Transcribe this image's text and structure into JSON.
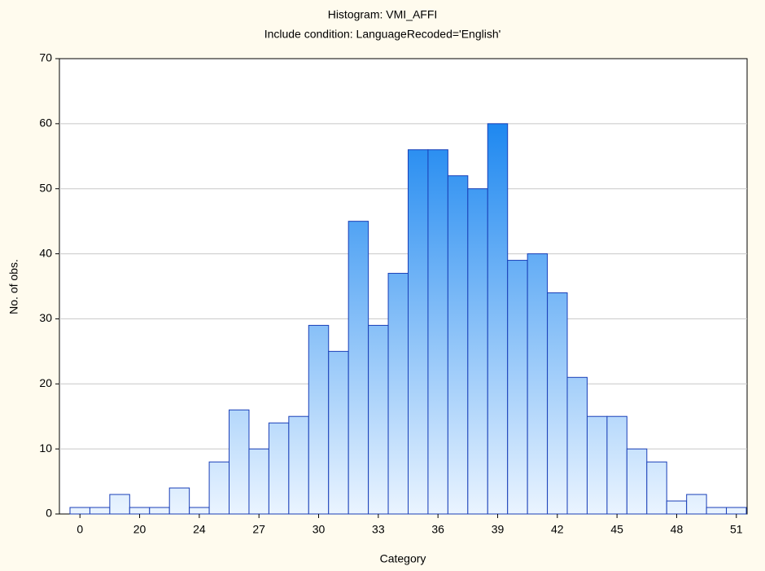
{
  "chart_data": {
    "type": "bar",
    "title": "Histogram: VMI_AFFI",
    "subtitle": "Include condition: LanguageRecoded='English'",
    "x_label": "Category",
    "y_label": "No. of obs.",
    "categories": [
      "0",
      null,
      null,
      "20",
      null,
      null,
      "24",
      null,
      null,
      "27",
      null,
      null,
      "30",
      null,
      null,
      "33",
      null,
      null,
      "36",
      null,
      null,
      "39",
      null,
      null,
      "42",
      null,
      null,
      "45",
      null,
      null,
      "48",
      null,
      null,
      "51"
    ],
    "values": [
      1,
      1,
      3,
      1,
      1,
      4,
      1,
      8,
      16,
      10,
      14,
      15,
      29,
      25,
      45,
      29,
      37,
      56,
      56,
      52,
      50,
      60,
      39,
      40,
      34,
      21,
      15,
      15,
      10,
      8,
      2,
      3,
      1,
      1
    ],
    "color": "#1e88f0",
    "ylim": [
      0,
      70
    ],
    "yticks": [
      0,
      10,
      20,
      30,
      40,
      50,
      60,
      70
    ],
    "grid": true
  }
}
